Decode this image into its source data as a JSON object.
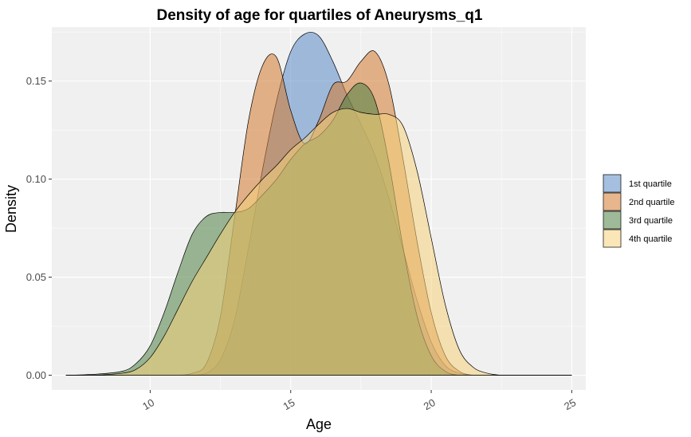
{
  "chart_data": {
    "type": "area",
    "title": "Density of age for quartiles of Aneurysms_q1",
    "xlabel": "Age",
    "ylabel": "Density",
    "xlim": [
      6.5,
      25.5
    ],
    "ylim": [
      -0.0075,
      0.1775
    ],
    "x_ticks": [
      10,
      15,
      20,
      25
    ],
    "y_ticks": [
      0.0,
      0.05,
      0.1,
      0.15
    ],
    "x_tick_labels": [
      "10",
      "15",
      "20",
      "25"
    ],
    "y_tick_labels": [
      "0.00",
      "0.05",
      "0.10",
      "0.15"
    ],
    "grid": true,
    "legend_position": "right",
    "x": [
      7,
      8,
      9,
      9.5,
      10,
      10.5,
      11,
      11.5,
      12,
      12.5,
      13,
      13.5,
      14,
      14.5,
      15,
      15.5,
      16,
      16.5,
      17,
      17.5,
      18,
      18.5,
      19,
      19.5,
      20,
      20.5,
      21,
      21.5,
      22,
      22.5,
      23,
      24,
      25
    ],
    "series": [
      {
        "name": "1st quartile",
        "color": "#5b8bc9",
        "values": [
          0,
          0,
          0,
          0,
          0,
          0,
          0,
          0,
          0.001,
          0.008,
          0.028,
          0.065,
          0.105,
          0.14,
          0.165,
          0.174,
          0.173,
          0.16,
          0.143,
          0.128,
          0.112,
          0.09,
          0.064,
          0.038,
          0.017,
          0.005,
          0.001,
          0,
          0,
          0,
          0,
          0,
          0
        ]
      },
      {
        "name": "2nd quartile",
        "color": "#d47a2e",
        "values": [
          0,
          0,
          0,
          0,
          0,
          0,
          0,
          0.001,
          0.006,
          0.03,
          0.08,
          0.13,
          0.158,
          0.162,
          0.135,
          0.118,
          0.13,
          0.148,
          0.15,
          0.16,
          0.165,
          0.148,
          0.11,
          0.068,
          0.032,
          0.01,
          0.002,
          0,
          0,
          0,
          0,
          0,
          0
        ]
      },
      {
        "name": "3rd quartile",
        "color": "#4f8244",
        "values": [
          0,
          0.0005,
          0.002,
          0.006,
          0.015,
          0.032,
          0.053,
          0.072,
          0.081,
          0.083,
          0.083,
          0.085,
          0.092,
          0.1,
          0.11,
          0.118,
          0.122,
          0.13,
          0.143,
          0.149,
          0.14,
          0.108,
          0.065,
          0.03,
          0.01,
          0.002,
          0,
          0,
          0,
          0,
          0,
          0,
          0
        ]
      },
      {
        "name": "4th quartile",
        "color": "#f5d27b",
        "values": [
          0,
          0,
          0.001,
          0.003,
          0.009,
          0.02,
          0.034,
          0.048,
          0.06,
          0.072,
          0.083,
          0.092,
          0.1,
          0.107,
          0.115,
          0.121,
          0.128,
          0.134,
          0.136,
          0.134,
          0.133,
          0.133,
          0.127,
          0.104,
          0.07,
          0.036,
          0.013,
          0.004,
          0.001,
          0,
          0,
          0,
          0
        ]
      }
    ]
  }
}
